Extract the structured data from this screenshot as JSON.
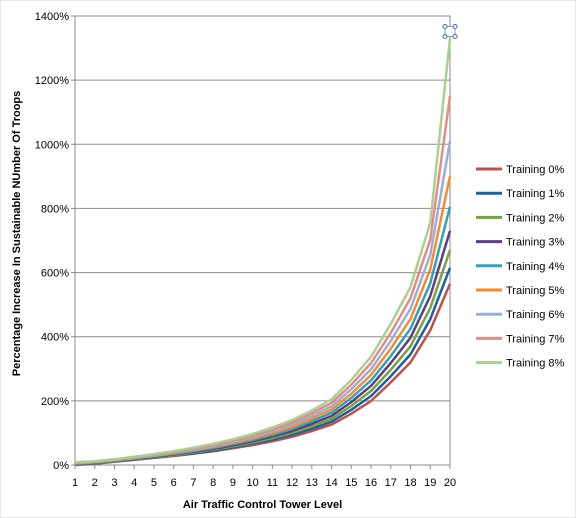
{
  "chart_data": {
    "type": "line",
    "xlabel": "Air Traffic Control Tower Level",
    "ylabel": "Percentage Increase In Sustainable NUmber Of Troops",
    "x": [
      1,
      2,
      3,
      4,
      5,
      6,
      7,
      8,
      9,
      10,
      11,
      12,
      13,
      14,
      15,
      16,
      17,
      18,
      19,
      20
    ],
    "ylim": [
      0,
      1400
    ],
    "yticks": [
      "0%",
      "200%",
      "400%",
      "600%",
      "800%",
      "1000%",
      "1200%",
      "1400%"
    ],
    "grid": true,
    "legend_position": "right",
    "series": [
      {
        "name": "Training 0%",
        "color": "#C0504D",
        "values": [
          0,
          4,
          10,
          16,
          22,
          28,
          35,
          43,
          52,
          62,
          74,
          88,
          106,
          126,
          160,
          200,
          258,
          320,
          420,
          565
        ]
      },
      {
        "name": "Training 1%",
        "color": "#1F5F9F",
        "values": [
          1,
          5,
          11,
          17,
          23,
          30,
          37,
          45,
          55,
          66,
          79,
          94,
          113,
          135,
          172,
          215,
          277,
          345,
          455,
          615
        ]
      },
      {
        "name": "Training 2%",
        "color": "#77A33B",
        "values": [
          2,
          6,
          12,
          18,
          24,
          31,
          39,
          48,
          58,
          70,
          84,
          100,
          120,
          144,
          184,
          231,
          297,
          370,
          490,
          670
        ]
      },
      {
        "name": "Training 3%",
        "color": "#5E3D82",
        "values": [
          3,
          7,
          13,
          19,
          26,
          33,
          41,
          50,
          61,
          74,
          89,
          106,
          128,
          153,
          196,
          247,
          318,
          397,
          527,
          730
        ]
      },
      {
        "name": "Training 4%",
        "color": "#2DA2BF",
        "values": [
          4,
          8,
          14,
          20,
          27,
          35,
          43,
          53,
          65,
          78,
          94,
          112,
          136,
          163,
          209,
          264,
          340,
          425,
          567,
          805
        ]
      },
      {
        "name": "Training 5%",
        "color": "#F68B2C",
        "values": [
          5,
          9,
          15,
          22,
          29,
          37,
          46,
          56,
          68,
          82,
          99,
          118,
          144,
          173,
          222,
          281,
          363,
          455,
          610,
          900
        ]
      },
      {
        "name": "Training 6%",
        "color": "#9BAFD6",
        "values": [
          6,
          10,
          16,
          23,
          30,
          39,
          48,
          59,
          72,
          87,
          105,
          125,
          152,
          183,
          236,
          299,
          387,
          487,
          655,
          1010
        ]
      },
      {
        "name": "Training 7%",
        "color": "#E38B89",
        "values": [
          7,
          11,
          17,
          24,
          32,
          41,
          51,
          62,
          76,
          92,
          111,
          132,
          161,
          194,
          250,
          318,
          412,
          520,
          703,
          1150
        ]
      },
      {
        "name": "Training 8%",
        "color": "#A9D08E",
        "values": [
          8,
          12,
          18,
          26,
          34,
          43,
          54,
          66,
          80,
          97,
          117,
          140,
          170,
          205,
          265,
          338,
          440,
          555,
          755,
          1330
        ]
      }
    ],
    "marker_icon": "plot-area-resize-handle-icon"
  }
}
